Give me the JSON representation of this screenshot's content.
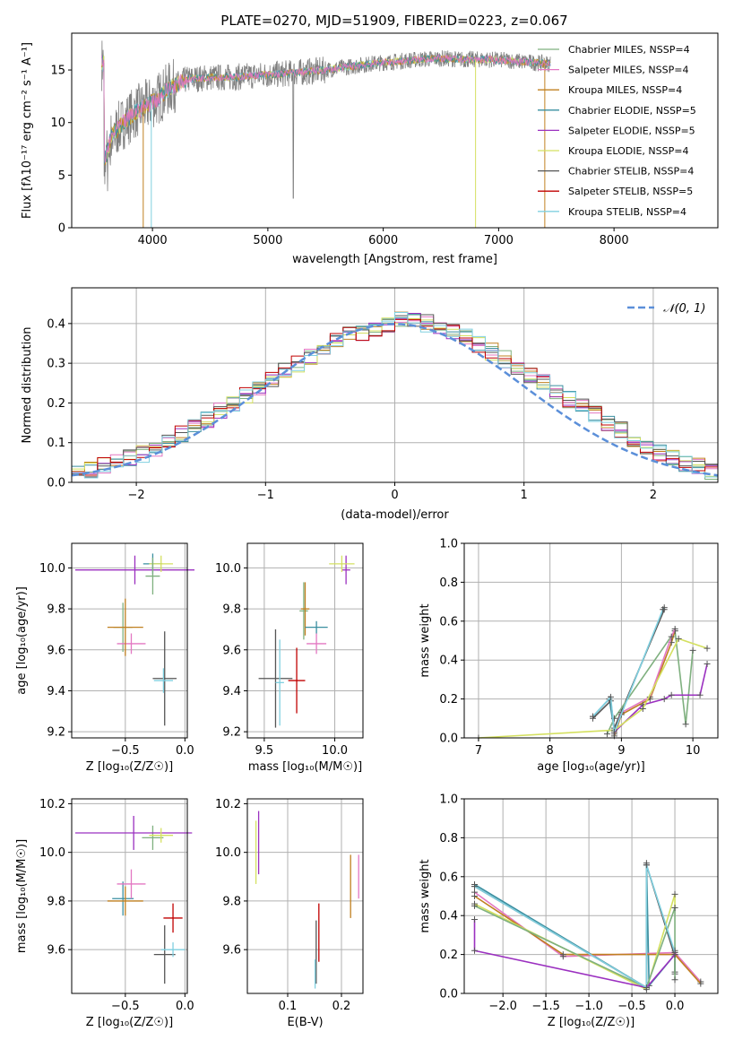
{
  "title": "PLATE=0270, MJD=51909, FIBERID=0223, z=0.067",
  "colors": {
    "grid": "#b0b0b0",
    "data_gray": "#808080",
    "normal_curve": "#5b8fd9",
    "models": [
      "#7fb07f",
      "#e377c2",
      "#c08020",
      "#3a8fa0",
      "#9b30c0",
      "#d4e060",
      "#555555",
      "#c00000",
      "#80d0e0"
    ]
  },
  "chart_data": [
    {
      "id": "spectrum",
      "type": "line",
      "xlabel": "wavelength [Angstrom, rest frame]",
      "ylabel": "Flux [fλ10⁻¹⁷ erg cm⁻² s⁻¹ A⁻¹]",
      "xlim": [
        3300,
        8900
      ],
      "ylim": [
        0,
        18.5
      ],
      "xticks": [
        4000,
        5000,
        6000,
        7000,
        8000
      ],
      "yticks": [
        0,
        5,
        10,
        15
      ],
      "grid": false,
      "legend_position": "right",
      "series": [
        {
          "name": "Chabrier MILES, NSSP=4",
          "color": "#7fb07f"
        },
        {
          "name": "Salpeter MILES, NSSP=4",
          "color": "#e377c2"
        },
        {
          "name": "Kroupa MILES, NSSP=4",
          "color": "#c08020"
        },
        {
          "name": "Chabrier ELODIE, NSSP=5",
          "color": "#3a8fa0"
        },
        {
          "name": "Salpeter ELODIE, NSSP=5",
          "color": "#9b30c0"
        },
        {
          "name": "Kroupa ELODIE, NSSP=4",
          "color": "#d4e060"
        },
        {
          "name": "Chabrier STELIB, NSSP=4",
          "color": "#555555"
        },
        {
          "name": "Salpeter STELIB, NSSP=5",
          "color": "#c00000"
        },
        {
          "name": "Kroupa STELIB, NSSP=4",
          "color": "#80d0e0"
        }
      ],
      "trend": {
        "x": [
          3580,
          3650,
          3750,
          3850,
          3950,
          4050,
          4150,
          4300,
          4500,
          4700,
          4900,
          5100,
          5300,
          5500,
          5700,
          5900,
          6100,
          6300,
          6500,
          6700,
          6900,
          7100,
          7300,
          7450
        ],
        "y": [
          6.2,
          8.8,
          10.0,
          11.0,
          11.6,
          12.3,
          13.3,
          14.1,
          14.3,
          14.3,
          14.5,
          14.6,
          14.8,
          15.0,
          15.3,
          15.6,
          15.8,
          16.0,
          16.1,
          16.0,
          16.0,
          15.9,
          15.7,
          15.6
        ]
      },
      "data_extent": [
        3560,
        7450
      ]
    },
    {
      "id": "residual-histogram",
      "type": "line",
      "xlabel": "(data-model)/error",
      "ylabel": "Normed distribution",
      "xlim": [
        -2.5,
        2.5
      ],
      "ylim": [
        0,
        0.49
      ],
      "xticks": [
        -2,
        -1,
        0,
        1,
        2
      ],
      "yticks": [
        0.0,
        0.1,
        0.2,
        0.3,
        0.4
      ],
      "grid": true,
      "legend_position": "top-right",
      "legend": [
        "𝒩(0, 1)"
      ],
      "bin_width": 0.1,
      "hist_approx": [
        0.025,
        0.03,
        0.04,
        0.05,
        0.06,
        0.07,
        0.085,
        0.1,
        0.12,
        0.14,
        0.16,
        0.18,
        0.2,
        0.22,
        0.24,
        0.26,
        0.28,
        0.3,
        0.32,
        0.34,
        0.36,
        0.37,
        0.38,
        0.39,
        0.4,
        0.41,
        0.41,
        0.4,
        0.39,
        0.38,
        0.37,
        0.35,
        0.33,
        0.31,
        0.29,
        0.27,
        0.25,
        0.23,
        0.21,
        0.19,
        0.17,
        0.15,
        0.13,
        0.11,
        0.09,
        0.075,
        0.065,
        0.05,
        0.04,
        0.03
      ]
    },
    {
      "id": "age-vs-z",
      "type": "scatter",
      "xlabel": "Z [log₁₀(Z/Z☉)]",
      "ylabel": "age  [log₁₀(age/yr)]",
      "xlim": [
        -0.95,
        0.02
      ],
      "ylim": [
        9.17,
        10.12
      ],
      "xticks": [
        -0.5,
        0.0
      ],
      "xtick_labels": [
        "−0.5",
        "0.0"
      ],
      "yticks": [
        9.2,
        9.4,
        9.6,
        9.8,
        10.0
      ],
      "grid": true,
      "crosses": [
        {
          "x": -0.52,
          "y": 9.71,
          "xerr": 0.08,
          "yerr": 0.12,
          "c": 0
        },
        {
          "x": -0.45,
          "y": 9.63,
          "xerr": 0.12,
          "yerr": 0.05,
          "c": 1
        },
        {
          "x": -0.5,
          "y": 9.71,
          "xerr": 0.15,
          "yerr": 0.14,
          "c": 2
        },
        {
          "x": -0.27,
          "y": 10.02,
          "xerr": 0.08,
          "yerr": 0.05,
          "c": 3
        },
        {
          "x": -0.42,
          "y": 9.99,
          "xerr": 0.5,
          "yerr": 0.07,
          "c": 4
        },
        {
          "x": -0.2,
          "y": 10.02,
          "xerr": 0.1,
          "yerr": 0.04,
          "c": 5
        },
        {
          "x": -0.17,
          "y": 9.46,
          "xerr": 0.1,
          "yerr": 0.23,
          "c": 6
        },
        {
          "x": -0.27,
          "y": 9.96,
          "xerr": 0.06,
          "yerr": 0.09,
          "c": 0
        },
        {
          "x": -0.18,
          "y": 9.45,
          "xerr": 0.08,
          "yerr": 0.06,
          "c": 8
        }
      ]
    },
    {
      "id": "age-vs-mass",
      "type": "scatter",
      "xlabel": "mass [log₁₀(M/M☉)]",
      "ylabel": "",
      "xlim": [
        9.38,
        10.2
      ],
      "ylim": [
        9.17,
        10.12
      ],
      "xticks": [
        9.5,
        10.0
      ],
      "xtick_labels": [
        "9.5",
        "10.0"
      ],
      "yticks": [
        9.2,
        9.4,
        9.6,
        9.8,
        10.0
      ],
      "grid": true,
      "crosses": [
        {
          "x": 9.78,
          "y": 9.79,
          "xerr": 0.03,
          "yerr": 0.14,
          "c": 0
        },
        {
          "x": 9.87,
          "y": 9.63,
          "xerr": 0.07,
          "yerr": 0.05,
          "c": 1
        },
        {
          "x": 9.79,
          "y": 9.8,
          "xerr": 0.03,
          "yerr": 0.13,
          "c": 2
        },
        {
          "x": 9.87,
          "y": 9.71,
          "xerr": 0.08,
          "yerr": 0.03,
          "c": 3
        },
        {
          "x": 10.08,
          "y": 9.99,
          "xerr": 0.03,
          "yerr": 0.07,
          "c": 4
        },
        {
          "x": 10.05,
          "y": 10.02,
          "xerr": 0.09,
          "yerr": 0.04,
          "c": 5
        },
        {
          "x": 9.58,
          "y": 9.46,
          "xerr": 0.12,
          "yerr": 0.24,
          "c": 6
        },
        {
          "x": 9.73,
          "y": 9.45,
          "xerr": 0.06,
          "yerr": 0.16,
          "c": 7
        },
        {
          "x": 9.61,
          "y": 9.44,
          "xerr": 0.03,
          "yerr": 0.21,
          "c": 8
        }
      ]
    },
    {
      "id": "mass-weight-vs-age",
      "type": "line",
      "xlabel": "age  [log₁₀(age/yr)]",
      "ylabel": "mass weight",
      "xlim": [
        6.8,
        10.35
      ],
      "ylim": [
        0,
        1.0
      ],
      "xticks": [
        7,
        8,
        9,
        10
      ],
      "yticks": [
        0.0,
        0.2,
        0.4,
        0.6,
        0.8,
        1.0
      ],
      "grid": true,
      "series": [
        {
          "c": 3,
          "x": [
            8.6,
            8.83,
            8.9,
            9.6
          ],
          "y": [
            0.11,
            0.2,
            0.04,
            0.67
          ]
        },
        {
          "c": 6,
          "x": [
            8.6,
            8.85,
            8.9,
            9.6
          ],
          "y": [
            0.1,
            0.19,
            0.05,
            0.66
          ]
        },
        {
          "c": 0,
          "x": [
            8.8,
            8.9,
            9.75,
            9.9,
            10.0
          ],
          "y": [
            0.02,
            0.1,
            0.55,
            0.07,
            0.45
          ]
        },
        {
          "c": 2,
          "x": [
            8.9,
            9.0,
            9.4,
            9.7,
            9.75
          ],
          "y": [
            0.01,
            0.12,
            0.2,
            0.49,
            0.55
          ]
        },
        {
          "c": 1,
          "x": [
            8.9,
            9.0,
            9.4,
            9.7,
            9.75
          ],
          "y": [
            0.02,
            0.13,
            0.21,
            0.52,
            0.56
          ]
        },
        {
          "c": 4,
          "x": [
            8.9,
            9.3,
            9.6,
            9.7,
            10.1,
            10.2
          ],
          "y": [
            0.03,
            0.17,
            0.2,
            0.22,
            0.22,
            0.38
          ]
        },
        {
          "c": 5,
          "x": [
            7.0,
            8.9,
            9.3,
            9.8,
            10.2
          ],
          "y": [
            0.0,
            0.04,
            0.15,
            0.51,
            0.46
          ]
        },
        {
          "c": 8,
          "x": [
            8.6,
            8.85,
            8.9,
            9.58
          ],
          "y": [
            0.11,
            0.21,
            0.03,
            0.66
          ]
        }
      ]
    },
    {
      "id": "mass-vs-z",
      "type": "scatter",
      "xlabel": "Z [log₁₀(Z/Z☉)]",
      "ylabel": "mass [log₁₀(M/M☉)]",
      "xlim": [
        -0.95,
        0.02
      ],
      "ylim": [
        9.42,
        10.22
      ],
      "xticks": [
        -0.5,
        0.0
      ],
      "xtick_labels": [
        "−0.5",
        "0.0"
      ],
      "yticks": [
        9.6,
        9.8,
        10.0,
        10.2
      ],
      "grid": true,
      "crosses": [
        {
          "x": -0.52,
          "y": 9.81,
          "xerr": 0.09,
          "yerr": 0.07,
          "c": 3
        },
        {
          "x": -0.45,
          "y": 9.87,
          "xerr": 0.12,
          "yerr": 0.06,
          "c": 1
        },
        {
          "x": -0.5,
          "y": 9.8,
          "xerr": 0.15,
          "yerr": 0.06,
          "c": 2
        },
        {
          "x": -0.27,
          "y": 10.06,
          "xerr": 0.09,
          "yerr": 0.05,
          "c": 0
        },
        {
          "x": -0.43,
          "y": 10.08,
          "xerr": 0.49,
          "yerr": 0.07,
          "c": 4
        },
        {
          "x": -0.2,
          "y": 10.07,
          "xerr": 0.1,
          "yerr": 0.03,
          "c": 5
        },
        {
          "x": -0.17,
          "y": 9.58,
          "xerr": 0.09,
          "yerr": 0.12,
          "c": 6
        },
        {
          "x": -0.1,
          "y": 9.73,
          "xerr": 0.08,
          "yerr": 0.06,
          "c": 7
        },
        {
          "x": -0.1,
          "y": 9.6,
          "xerr": 0.1,
          "yerr": 0.03,
          "c": 8
        }
      ]
    },
    {
      "id": "mass-vs-ebv",
      "type": "scatter",
      "xlabel": "E(B-V)",
      "ylabel": "",
      "xlim": [
        0.025,
        0.24
      ],
      "ylim": [
        9.42,
        10.22
      ],
      "xticks": [
        0.1,
        0.2
      ],
      "xtick_labels": [
        "0.1",
        "0.2"
      ],
      "yticks": [
        9.6,
        9.8,
        10.0,
        10.2
      ],
      "grid": true,
      "crosses": [
        {
          "x": 0.041,
          "y": 10.0,
          "xerr": 0.0,
          "yerr": 0.13,
          "c": 5
        },
        {
          "x": 0.046,
          "y": 10.04,
          "xerr": 0.0,
          "yerr": 0.13,
          "c": 4
        },
        {
          "x": 0.153,
          "y": 9.59,
          "xerr": 0.0,
          "yerr": 0.13,
          "c": 6
        },
        {
          "x": 0.158,
          "y": 9.67,
          "xerr": 0.0,
          "yerr": 0.12,
          "c": 7
        },
        {
          "x": 0.151,
          "y": 9.5,
          "xerr": 0.0,
          "yerr": 0.06,
          "c": 8
        },
        {
          "x": 0.217,
          "y": 9.86,
          "xerr": 0.0,
          "yerr": 0.13,
          "c": 2
        },
        {
          "x": 0.232,
          "y": 9.9,
          "xerr": 0.0,
          "yerr": 0.09,
          "c": 1
        }
      ]
    },
    {
      "id": "mass-weight-vs-z",
      "type": "line",
      "xlabel": "Z [log₁₀(Z/Z☉)]",
      "ylabel": "mass weight",
      "xlim": [
        -2.45,
        0.5
      ],
      "ylim": [
        0,
        1.0
      ],
      "xticks": [
        -2.0,
        -1.5,
        -1.0,
        -0.5,
        0.0
      ],
      "xtick_labels": [
        "−2.0",
        "−1.5",
        "−1.0",
        "−0.5",
        "0.0"
      ],
      "yticks": [
        0.0,
        0.2,
        0.4,
        0.6,
        0.8,
        1.0
      ],
      "grid": true,
      "series": [
        {
          "c": 3,
          "x": [
            -2.33,
            -0.33,
            -0.33,
            -0.3,
            0.0,
            0.0
          ],
          "y": [
            0.56,
            0.03,
            0.67,
            0.04,
            0.2,
            0.11
          ]
        },
        {
          "c": 6,
          "x": [
            -2.33,
            -0.33,
            -0.33,
            0.0,
            0.0
          ],
          "y": [
            0.55,
            0.03,
            0.66,
            0.19,
            0.1
          ]
        },
        {
          "c": 1,
          "x": [
            -2.33,
            -1.3,
            0.0,
            0.3
          ],
          "y": [
            0.52,
            0.19,
            0.21,
            0.06
          ]
        },
        {
          "c": 2,
          "x": [
            -2.33,
            -1.3,
            0.0,
            0.3
          ],
          "y": [
            0.5,
            0.2,
            0.2,
            0.05
          ]
        },
        {
          "c": 5,
          "x": [
            -2.33,
            -0.33,
            0.0,
            0.0
          ],
          "y": [
            0.46,
            0.02,
            0.51,
            0.44
          ]
        },
        {
          "c": 0,
          "x": [
            -2.33,
            -0.33,
            0.0,
            0.0
          ],
          "y": [
            0.45,
            0.03,
            0.44,
            0.07
          ]
        },
        {
          "c": 4,
          "x": [
            -2.33,
            -2.33,
            -0.33,
            0.0,
            0.0
          ],
          "y": [
            0.38,
            0.22,
            0.03,
            0.2,
            0.22
          ]
        },
        {
          "c": 8,
          "x": [
            -2.33,
            -0.33,
            -0.33,
            0.0
          ],
          "y": [
            0.55,
            0.03,
            0.66,
            0.21
          ]
        }
      ]
    }
  ]
}
